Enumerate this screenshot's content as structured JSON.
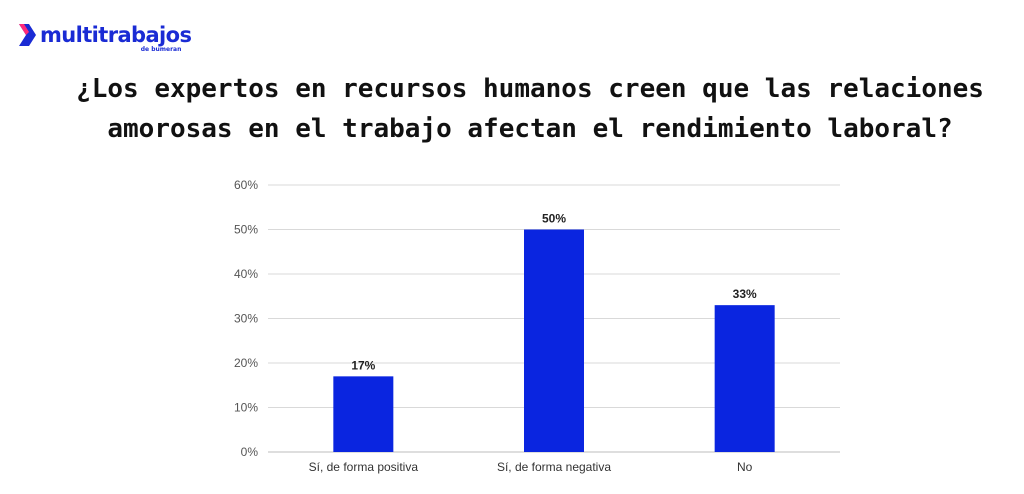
{
  "logo": {
    "name": "multitrabajos",
    "sub": "de bumeran"
  },
  "colors": {
    "brand": "#1a2bd4",
    "bar": "#0a25e0",
    "grid": "#d9d9d9"
  },
  "chart_data": {
    "type": "bar",
    "title_lines": [
      "¿Los expertos en recursos humanos creen que las relaciones",
      "amorosas en el trabajo afectan el rendimiento laboral?"
    ],
    "categories": [
      "Sí, de forma positiva",
      "Sí, de forma negativa",
      "No"
    ],
    "values": [
      17,
      50,
      33
    ],
    "value_labels": [
      "17%",
      "50%",
      "33%"
    ],
    "ylim": [
      0,
      60
    ],
    "yticks": [
      "0%",
      "10%",
      "20%",
      "30%",
      "40%",
      "50%",
      "60%"
    ],
    "grid": true,
    "legend": "none"
  }
}
